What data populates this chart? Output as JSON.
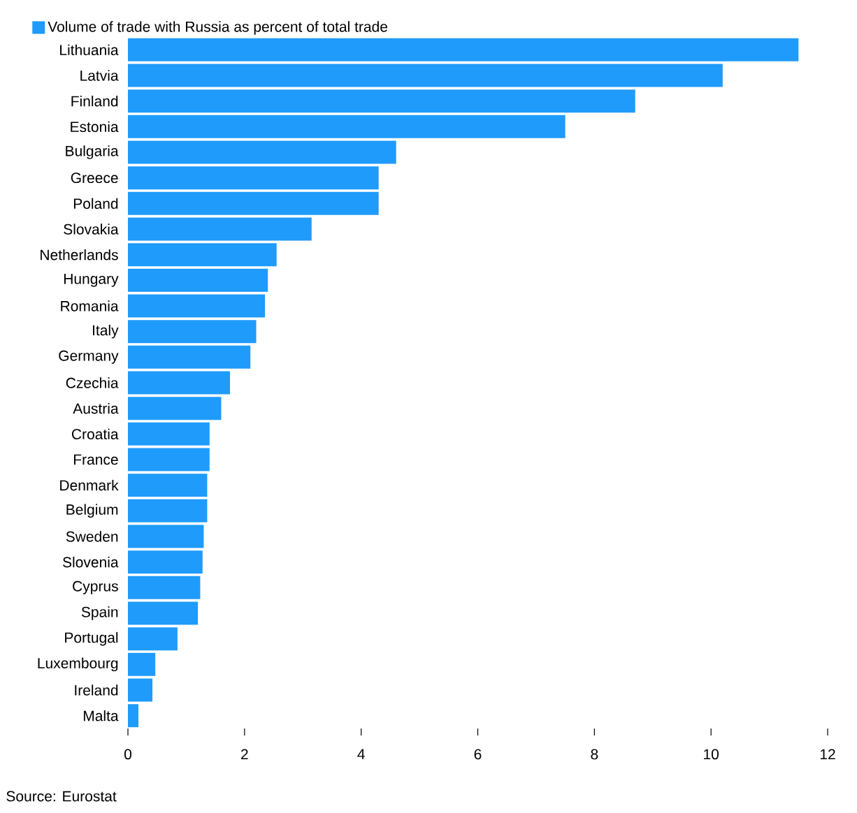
{
  "chart_data": {
    "type": "bar",
    "orientation": "horizontal",
    "categories": [
      "Lithuania",
      "Latvia",
      "Finland",
      "Estonia",
      "Bulgaria",
      "Greece",
      "Poland",
      "Slovakia",
      "Netherlands",
      "Hungary",
      "Romania",
      "Italy",
      "Germany",
      "Czechia",
      "Austria",
      "Croatia",
      "France",
      "Denmark",
      "Belgium",
      "Sweden",
      "Slovenia",
      "Cyprus",
      "Spain",
      "Portugal",
      "Luxembourg",
      "Ireland",
      "Malta"
    ],
    "series": [
      {
        "name": "Volume of trade with Russia as percent of total trade",
        "color": "#1f9bfb",
        "values": [
          11.5,
          10.2,
          8.7,
          7.5,
          4.6,
          4.3,
          4.3,
          3.15,
          2.55,
          2.4,
          2.35,
          2.2,
          2.1,
          1.75,
          1.6,
          1.4,
          1.4,
          1.36,
          1.36,
          1.3,
          1.28,
          1.24,
          1.2,
          0.85,
          0.47,
          0.42,
          0.18
        ]
      }
    ],
    "xlim": [
      0,
      12
    ],
    "xticks": [
      0,
      2,
      4,
      6,
      8,
      10,
      12
    ],
    "legend": "top left",
    "annotations": [
      "Source: Eurostat"
    ]
  }
}
